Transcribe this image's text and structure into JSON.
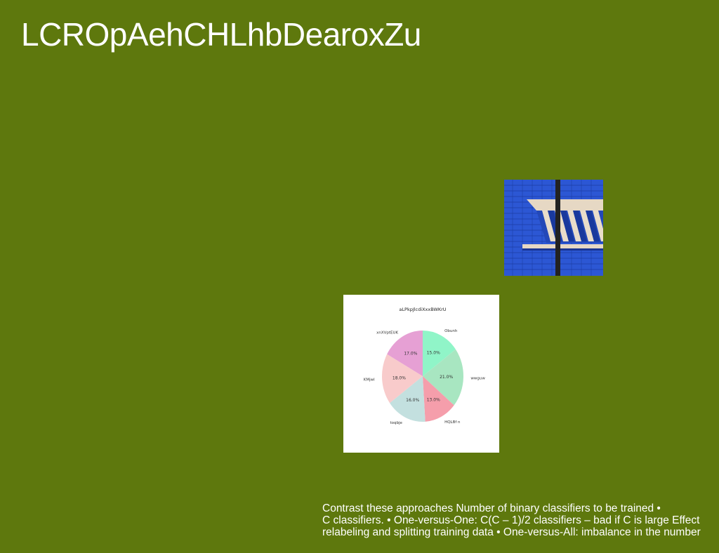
{
  "slide": {
    "title": "LCROpAehCHLhbDearoxZu",
    "body_lines": [
      "Contrast these approaches Number of binary classifiers to be trained •",
      "C classifiers. • One-versus-One: C(C – 1)/2 classifiers – bad if C is large Effect",
      "relabeling and splitting training data • One-versus-All: imbalance in the number"
    ]
  },
  "colors": {
    "background": "#5e780d",
    "text": "#ffffff"
  },
  "chart_data": {
    "type": "pie",
    "title": "aLPkpJlcdiXxxBWKrU",
    "slices": [
      {
        "label": "Obunh",
        "value": 15.0,
        "color": "#90f5c8"
      },
      {
        "label": "wwguw",
        "value": 21.0,
        "color": "#a8e6c1"
      },
      {
        "label": "HQLBf n",
        "value": 13.0,
        "color": "#f59eab"
      },
      {
        "label": "toqbje",
        "value": 16.0,
        "color": "#c3e0df"
      },
      {
        "label": "KMjwl",
        "value": 18.0,
        "color": "#f8cbcb"
      },
      {
        "label": "xnXVptEUK",
        "value": 17.0,
        "color": "#e6a0d4"
      }
    ],
    "label_format": "percent_one_decimal"
  }
}
